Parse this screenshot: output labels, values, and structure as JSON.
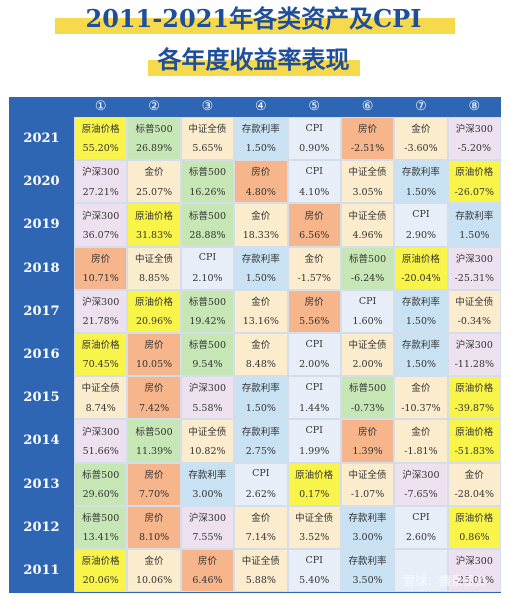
{
  "title": "2011-2021年各类资产及CPI",
  "subtitle": "各年度收益率表现",
  "rank_headers": [
    "①",
    "②",
    "③",
    "④",
    "⑤",
    "⑥",
    "⑦",
    "⑧"
  ],
  "rows": [
    {
      "year": "2021",
      "cells": [
        {
          "name": "原油价格",
          "value": "55.20%",
          "color": "y"
        },
        {
          "name": "标普500",
          "value": "26.89%",
          "color": "g"
        },
        {
          "name": "中证全债",
          "value": "5.65%",
          "color": "c"
        },
        {
          "name": "存款利率",
          "value": "1.50%",
          "color": "b"
        },
        {
          "name": "CPI",
          "value": "0.90%",
          "color": "w"
        },
        {
          "name": "房价",
          "value": "-2.51%",
          "color": "o"
        },
        {
          "name": "金价",
          "value": "-3.60%",
          "color": "c"
        },
        {
          "name": "沪深300",
          "value": "-5.20%",
          "color": "p"
        }
      ]
    },
    {
      "year": "2020",
      "cells": [
        {
          "name": "沪深300",
          "value": "27.21%",
          "color": "p"
        },
        {
          "name": "金价",
          "value": "25.07%",
          "color": "c"
        },
        {
          "name": "标普500",
          "value": "16.26%",
          "color": "g"
        },
        {
          "name": "房价",
          "value": "4.80%",
          "color": "o"
        },
        {
          "name": "CPI",
          "value": "4.10%",
          "color": "w"
        },
        {
          "name": "中证全债",
          "value": "3.05%",
          "color": "c"
        },
        {
          "name": "存款利率",
          "value": "1.50%",
          "color": "b"
        },
        {
          "name": "原油价格",
          "value": "-26.07%",
          "color": "y"
        }
      ]
    },
    {
      "year": "2019",
      "cells": [
        {
          "name": "沪深300",
          "value": "36.07%",
          "color": "p"
        },
        {
          "name": "原油价格",
          "value": "31.83%",
          "color": "y"
        },
        {
          "name": "标普500",
          "value": "28.88%",
          "color": "g"
        },
        {
          "name": "金价",
          "value": "18.33%",
          "color": "c"
        },
        {
          "name": "房价",
          "value": "6.56%",
          "color": "o"
        },
        {
          "name": "中证全债",
          "value": "4.96%",
          "color": "c"
        },
        {
          "name": "CPI",
          "value": "2.90%",
          "color": "w"
        },
        {
          "name": "存款利率",
          "value": "1.50%",
          "color": "b"
        }
      ]
    },
    {
      "year": "2018",
      "cells": [
        {
          "name": "房价",
          "value": "10.71%",
          "color": "o"
        },
        {
          "name": "中证全债",
          "value": "8.85%",
          "color": "c"
        },
        {
          "name": "CPI",
          "value": "2.10%",
          "color": "w"
        },
        {
          "name": "存款利率",
          "value": "1.50%",
          "color": "b"
        },
        {
          "name": "金价",
          "value": "-1.57%",
          "color": "c"
        },
        {
          "name": "标普500",
          "value": "-6.24%",
          "color": "g"
        },
        {
          "name": "原油价格",
          "value": "-20.04%",
          "color": "y"
        },
        {
          "name": "沪深300",
          "value": "-25.31%",
          "color": "p"
        }
      ]
    },
    {
      "year": "2017",
      "cells": [
        {
          "name": "沪深300",
          "value": "21.78%",
          "color": "p"
        },
        {
          "name": "原油价格",
          "value": "20.96%",
          "color": "y"
        },
        {
          "name": "标普500",
          "value": "19.42%",
          "color": "g"
        },
        {
          "name": "金价",
          "value": "13.16%",
          "color": "c"
        },
        {
          "name": "房价",
          "value": "5.56%",
          "color": "o"
        },
        {
          "name": "CPI",
          "value": "1.60%",
          "color": "w"
        },
        {
          "name": "存款利率",
          "value": "1.50%",
          "color": "b"
        },
        {
          "name": "中证全债",
          "value": "-0.34%",
          "color": "c"
        }
      ]
    },
    {
      "year": "2016",
      "cells": [
        {
          "name": "原油价格",
          "value": "70.45%",
          "color": "y"
        },
        {
          "name": "房价",
          "value": "10.05%",
          "color": "o"
        },
        {
          "name": "标普500",
          "value": "9.54%",
          "color": "g"
        },
        {
          "name": "金价",
          "value": "8.48%",
          "color": "c"
        },
        {
          "name": "CPI",
          "value": "2.00%",
          "color": "w"
        },
        {
          "name": "中证全债",
          "value": "2.00%",
          "color": "c"
        },
        {
          "name": "存款利率",
          "value": "1.50%",
          "color": "b"
        },
        {
          "name": "沪深300",
          "value": "-11.28%",
          "color": "p"
        }
      ]
    },
    {
      "year": "2015",
      "cells": [
        {
          "name": "中证全债",
          "value": "8.74%",
          "color": "c"
        },
        {
          "name": "房价",
          "value": "7.42%",
          "color": "o"
        },
        {
          "name": "沪深300",
          "value": "5.58%",
          "color": "p"
        },
        {
          "name": "存款利率",
          "value": "1.50%",
          "color": "b"
        },
        {
          "name": "CPI",
          "value": "1.44%",
          "color": "w"
        },
        {
          "name": "标普500",
          "value": "-0.73%",
          "color": "g"
        },
        {
          "name": "金价",
          "value": "-10.37%",
          "color": "c"
        },
        {
          "name": "原油价格",
          "value": "-39.87%",
          "color": "y"
        }
      ]
    },
    {
      "year": "2014",
      "cells": [
        {
          "name": "沪深300",
          "value": "51.66%",
          "color": "p"
        },
        {
          "name": "标普500",
          "value": "11.39%",
          "color": "g"
        },
        {
          "name": "中证全债",
          "value": "10.82%",
          "color": "c"
        },
        {
          "name": "存款利率",
          "value": "2.75%",
          "color": "b"
        },
        {
          "name": "CPI",
          "value": "1.99%",
          "color": "w"
        },
        {
          "name": "房价",
          "value": "1.39%",
          "color": "o"
        },
        {
          "name": "金价",
          "value": "-1.81%",
          "color": "c"
        },
        {
          "name": "原油价格",
          "value": "-51.83%",
          "color": "y"
        }
      ]
    },
    {
      "year": "2013",
      "cells": [
        {
          "name": "标普500",
          "value": "29.60%",
          "color": "g"
        },
        {
          "name": "房价",
          "value": "7.70%",
          "color": "o"
        },
        {
          "name": "存款利率",
          "value": "3.00%",
          "color": "b"
        },
        {
          "name": "CPI",
          "value": "2.62%",
          "color": "w"
        },
        {
          "name": "原油价格",
          "value": "0.17%",
          "color": "y"
        },
        {
          "name": "中证全债",
          "value": "-1.07%",
          "color": "c"
        },
        {
          "name": "沪深300",
          "value": "-7.65%",
          "color": "p"
        },
        {
          "name": "金价",
          "value": "-28.04%",
          "color": "c"
        }
      ]
    },
    {
      "year": "2012",
      "cells": [
        {
          "name": "标普500",
          "value": "13.41%",
          "color": "g"
        },
        {
          "name": "房价",
          "value": "8.10%",
          "color": "o"
        },
        {
          "name": "沪深300",
          "value": "7.55%",
          "color": "p"
        },
        {
          "name": "金价",
          "value": "7.14%",
          "color": "c"
        },
        {
          "name": "中证全债",
          "value": "3.52%",
          "color": "c"
        },
        {
          "name": "存款利率",
          "value": "3.00%",
          "color": "b"
        },
        {
          "name": "CPI",
          "value": "2.60%",
          "color": "w"
        },
        {
          "name": "原油价格",
          "value": "0.86%",
          "color": "y"
        }
      ]
    },
    {
      "year": "2011",
      "cells": [
        {
          "name": "原油价格",
          "value": "20.06%",
          "color": "y"
        },
        {
          "name": "金价",
          "value": "10.06%",
          "color": "c"
        },
        {
          "name": "房价",
          "value": "6.46%",
          "color": "o"
        },
        {
          "name": "中证全债",
          "value": "5.88%",
          "color": "c"
        },
        {
          "name": "CPI",
          "value": "5.40%",
          "color": "w"
        },
        {
          "name": "存款利率",
          "value": "3.50%",
          "color": "b"
        },
        {
          "name": "",
          "value": "",
          "color": "w"
        },
        {
          "name": "沪深300",
          "value": "-25.01%",
          "color": "p"
        }
      ]
    }
  ],
  "watermark": "雪球：情景投资"
}
